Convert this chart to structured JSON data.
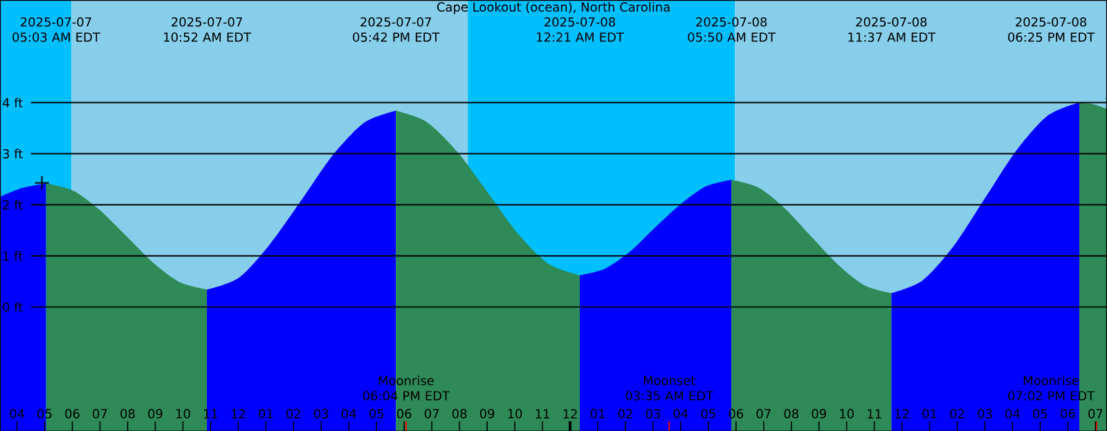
{
  "chart_data": {
    "type": "area",
    "title": "Cape Lookout (ocean), North Carolina",
    "xlim": [
      "2025-07-07T03:24",
      "2025-07-08T19:24"
    ],
    "xticks": [
      {
        "value": "2025-07-07T04:00",
        "label": "04"
      },
      {
        "value": "2025-07-07T05:00",
        "label": "05"
      },
      {
        "value": "2025-07-07T06:00",
        "label": "06"
      },
      {
        "value": "2025-07-07T07:00",
        "label": "07"
      },
      {
        "value": "2025-07-07T08:00",
        "label": "08"
      },
      {
        "value": "2025-07-07T09:00",
        "label": "09"
      },
      {
        "value": "2025-07-07T10:00",
        "label": "10"
      },
      {
        "value": "2025-07-07T11:00",
        "label": "11"
      },
      {
        "value": "2025-07-07T12:00",
        "label": "12"
      },
      {
        "value": "2025-07-07T13:00",
        "label": "01"
      },
      {
        "value": "2025-07-07T14:00",
        "label": "02"
      },
      {
        "value": "2025-07-07T15:00",
        "label": "03"
      },
      {
        "value": "2025-07-07T16:00",
        "label": "04"
      },
      {
        "value": "2025-07-07T17:00",
        "label": "05"
      },
      {
        "value": "2025-07-07T18:00",
        "label": "06"
      },
      {
        "value": "2025-07-07T19:00",
        "label": "07"
      },
      {
        "value": "2025-07-07T20:00",
        "label": "08"
      },
      {
        "value": "2025-07-07T21:00",
        "label": "09"
      },
      {
        "value": "2025-07-07T22:00",
        "label": "10"
      },
      {
        "value": "2025-07-07T23:00",
        "label": "11"
      },
      {
        "value": "2025-07-08T00:00",
        "label": "12"
      },
      {
        "value": "2025-07-08T01:00",
        "label": "01"
      },
      {
        "value": "2025-07-08T02:00",
        "label": "02"
      },
      {
        "value": "2025-07-08T03:00",
        "label": "03"
      },
      {
        "value": "2025-07-08T04:00",
        "label": "04"
      },
      {
        "value": "2025-07-08T05:00",
        "label": "05"
      },
      {
        "value": "2025-07-08T06:00",
        "label": "06"
      },
      {
        "value": "2025-07-08T07:00",
        "label": "07"
      },
      {
        "value": "2025-07-08T08:00",
        "label": "08"
      },
      {
        "value": "2025-07-08T09:00",
        "label": "09"
      },
      {
        "value": "2025-07-08T10:00",
        "label": "10"
      },
      {
        "value": "2025-07-08T11:00",
        "label": "11"
      },
      {
        "value": "2025-07-08T12:00",
        "label": "12"
      },
      {
        "value": "2025-07-08T13:00",
        "label": "01"
      },
      {
        "value": "2025-07-08T14:00",
        "label": "02"
      },
      {
        "value": "2025-07-08T15:00",
        "label": "03"
      },
      {
        "value": "2025-07-08T16:00",
        "label": "04"
      },
      {
        "value": "2025-07-08T17:00",
        "label": "05"
      },
      {
        "value": "2025-07-08T18:00",
        "label": "06"
      },
      {
        "value": "2025-07-08T19:00",
        "label": "07"
      }
    ],
    "ylim": [
      -2.43,
      6
    ],
    "yticks": [
      {
        "value": 0,
        "label": "0 ft"
      },
      {
        "value": 1,
        "label": "1 ft"
      },
      {
        "value": 2,
        "label": "2 ft"
      },
      {
        "value": 3,
        "label": "3 ft"
      },
      {
        "value": 4,
        "label": "4 ft"
      }
    ],
    "grid": "y",
    "bands": [
      {
        "axis": "x",
        "from": "2025-07-07T03:24",
        "to": "2025-07-07T05:58",
        "color": "#00bfff"
      },
      {
        "axis": "x",
        "from": "2025-07-07T05:58",
        "to": "2025-07-07T20:18",
        "color": "#87ceeb"
      },
      {
        "axis": "x",
        "from": "2025-07-07T20:18",
        "to": "2025-07-08T05:58",
        "color": "#00bfff"
      },
      {
        "axis": "x",
        "from": "2025-07-08T05:58",
        "to": "2025-07-08T19:24",
        "color": "#87ceeb"
      }
    ],
    "series": [
      {
        "color": "#0000ff",
        "x": [
          "2025-07-07T03:24",
          "2025-07-07T04:12",
          "2025-07-07T05:03",
          "2025-07-07T08:00",
          "2025-07-07T10:52",
          "2025-07-07T12:01",
          "2025-07-07T13:08",
          "2025-07-07T14:17",
          "2025-07-07T15:25",
          "2025-07-07T16:34",
          "2025-07-07T17:42",
          "2025-07-07T21:00",
          "2025-07-08T00:21",
          "2025-07-08T01:16",
          "2025-07-08T02:11",
          "2025-07-08T03:05",
          "2025-07-08T04:01",
          "2025-07-08T04:55",
          "2025-07-08T05:50",
          "2025-07-08T09:00",
          "2025-07-08T11:37",
          "2025-07-08T12:45",
          "2025-07-08T13:53",
          "2025-07-08T15:01",
          "2025-07-08T16:09",
          "2025-07-08T17:17",
          "2025-07-08T18:25"
        ],
        "values": [
          2.16,
          2.33,
          2.42,
          null,
          0.34,
          0.57,
          1.22,
          2.09,
          2.97,
          3.61,
          3.84,
          null,
          0.62,
          0.75,
          1.09,
          1.56,
          2.02,
          2.36,
          2.49,
          null,
          0.27,
          0.52,
          1.2,
          2.14,
          3.07,
          3.75,
          4.0
        ]
      },
      {
        "color": "#2e8b57",
        "x": [
          "2025-07-07T05:03",
          "2025-07-07T06:01",
          "2025-07-07T06:59",
          "2025-07-07T07:58",
          "2025-07-07T08:56",
          "2025-07-07T09:54",
          "2025-07-07T10:52",
          "2025-07-07T14:00",
          "2025-07-07T17:42",
          "2025-07-07T18:49",
          "2025-07-07T19:55",
          "2025-07-07T21:02",
          "2025-07-07T22:08",
          "2025-07-07T23:14",
          "2025-07-08T00:21",
          "2025-07-08T03:00",
          "2025-07-08T05:50",
          "2025-07-08T06:48",
          "2025-07-08T07:46",
          "2025-07-08T08:43",
          "2025-07-08T09:41",
          "2025-07-08T10:39",
          "2025-07-08T11:37",
          "2025-07-08T15:00",
          "2025-07-08T18:25",
          "2025-07-08T18:54",
          "2025-07-08T19:24"
        ],
        "values": [
          2.42,
          2.28,
          1.9,
          1.38,
          0.86,
          0.48,
          0.34,
          null,
          3.84,
          3.62,
          3.04,
          2.23,
          1.42,
          0.84,
          0.62,
          null,
          2.49,
          2.34,
          1.93,
          1.38,
          0.83,
          0.42,
          0.27,
          null,
          4.0,
          3.97,
          3.88
        ]
      },
      {
        "type": "scatter",
        "marker": "cross",
        "color": "#000000",
        "x": [
          "2025-07-07T04:54"
        ],
        "values": [
          2.43
        ]
      }
    ],
    "annotations": [
      "2025-07-07 05:03 AM EDT",
      "2025-07-07 10:52 AM EDT",
      "2025-07-07 05:42 PM EDT",
      "2025-07-08 12:21 AM EDT",
      "2025-07-08 05:50 AM EDT",
      "2025-07-08 11:37 AM EDT",
      "2025-07-08 06:25 PM EDT",
      {
        "text": "Moonrise 06:04 PM EDT",
        "x": "2025-07-07T18:04",
        "y": -2.43
      },
      {
        "text": "Moonset 03:35 AM EDT",
        "x": "2025-07-08T03:35",
        "y": -2.43
      },
      {
        "text": "Moonrise 07:02 PM EDT",
        "x": "2025-07-08T19:02",
        "y": -2.43
      }
    ]
  }
}
